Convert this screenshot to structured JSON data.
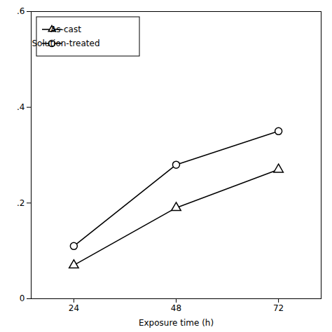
{
  "chart_data": {
    "type": "line",
    "xlabel": "Exposure time (h)",
    "x": [
      24,
      48,
      72
    ],
    "series": [
      {
        "name": "As-cast",
        "color": "#000000",
        "marker": "triangle",
        "values": [
          0.07,
          0.19,
          0.27
        ]
      },
      {
        "name": "Solution-treated",
        "color": "#000000",
        "marker": "circle",
        "values": [
          0.11,
          0.28,
          0.35
        ]
      }
    ],
    "xlim": [
      14,
      82
    ],
    "xticks": [
      24,
      48,
      72
    ],
    "ylim": [
      0,
      0.6
    ],
    "yticks": [
      0,
      {
        "value": 0.2,
        "label": ".2"
      },
      {
        "value": 0.4,
        "label": ".4"
      },
      {
        "value": 0.6,
        "label": ".6"
      }
    ],
    "legend": "upper left",
    "grid": false
  }
}
